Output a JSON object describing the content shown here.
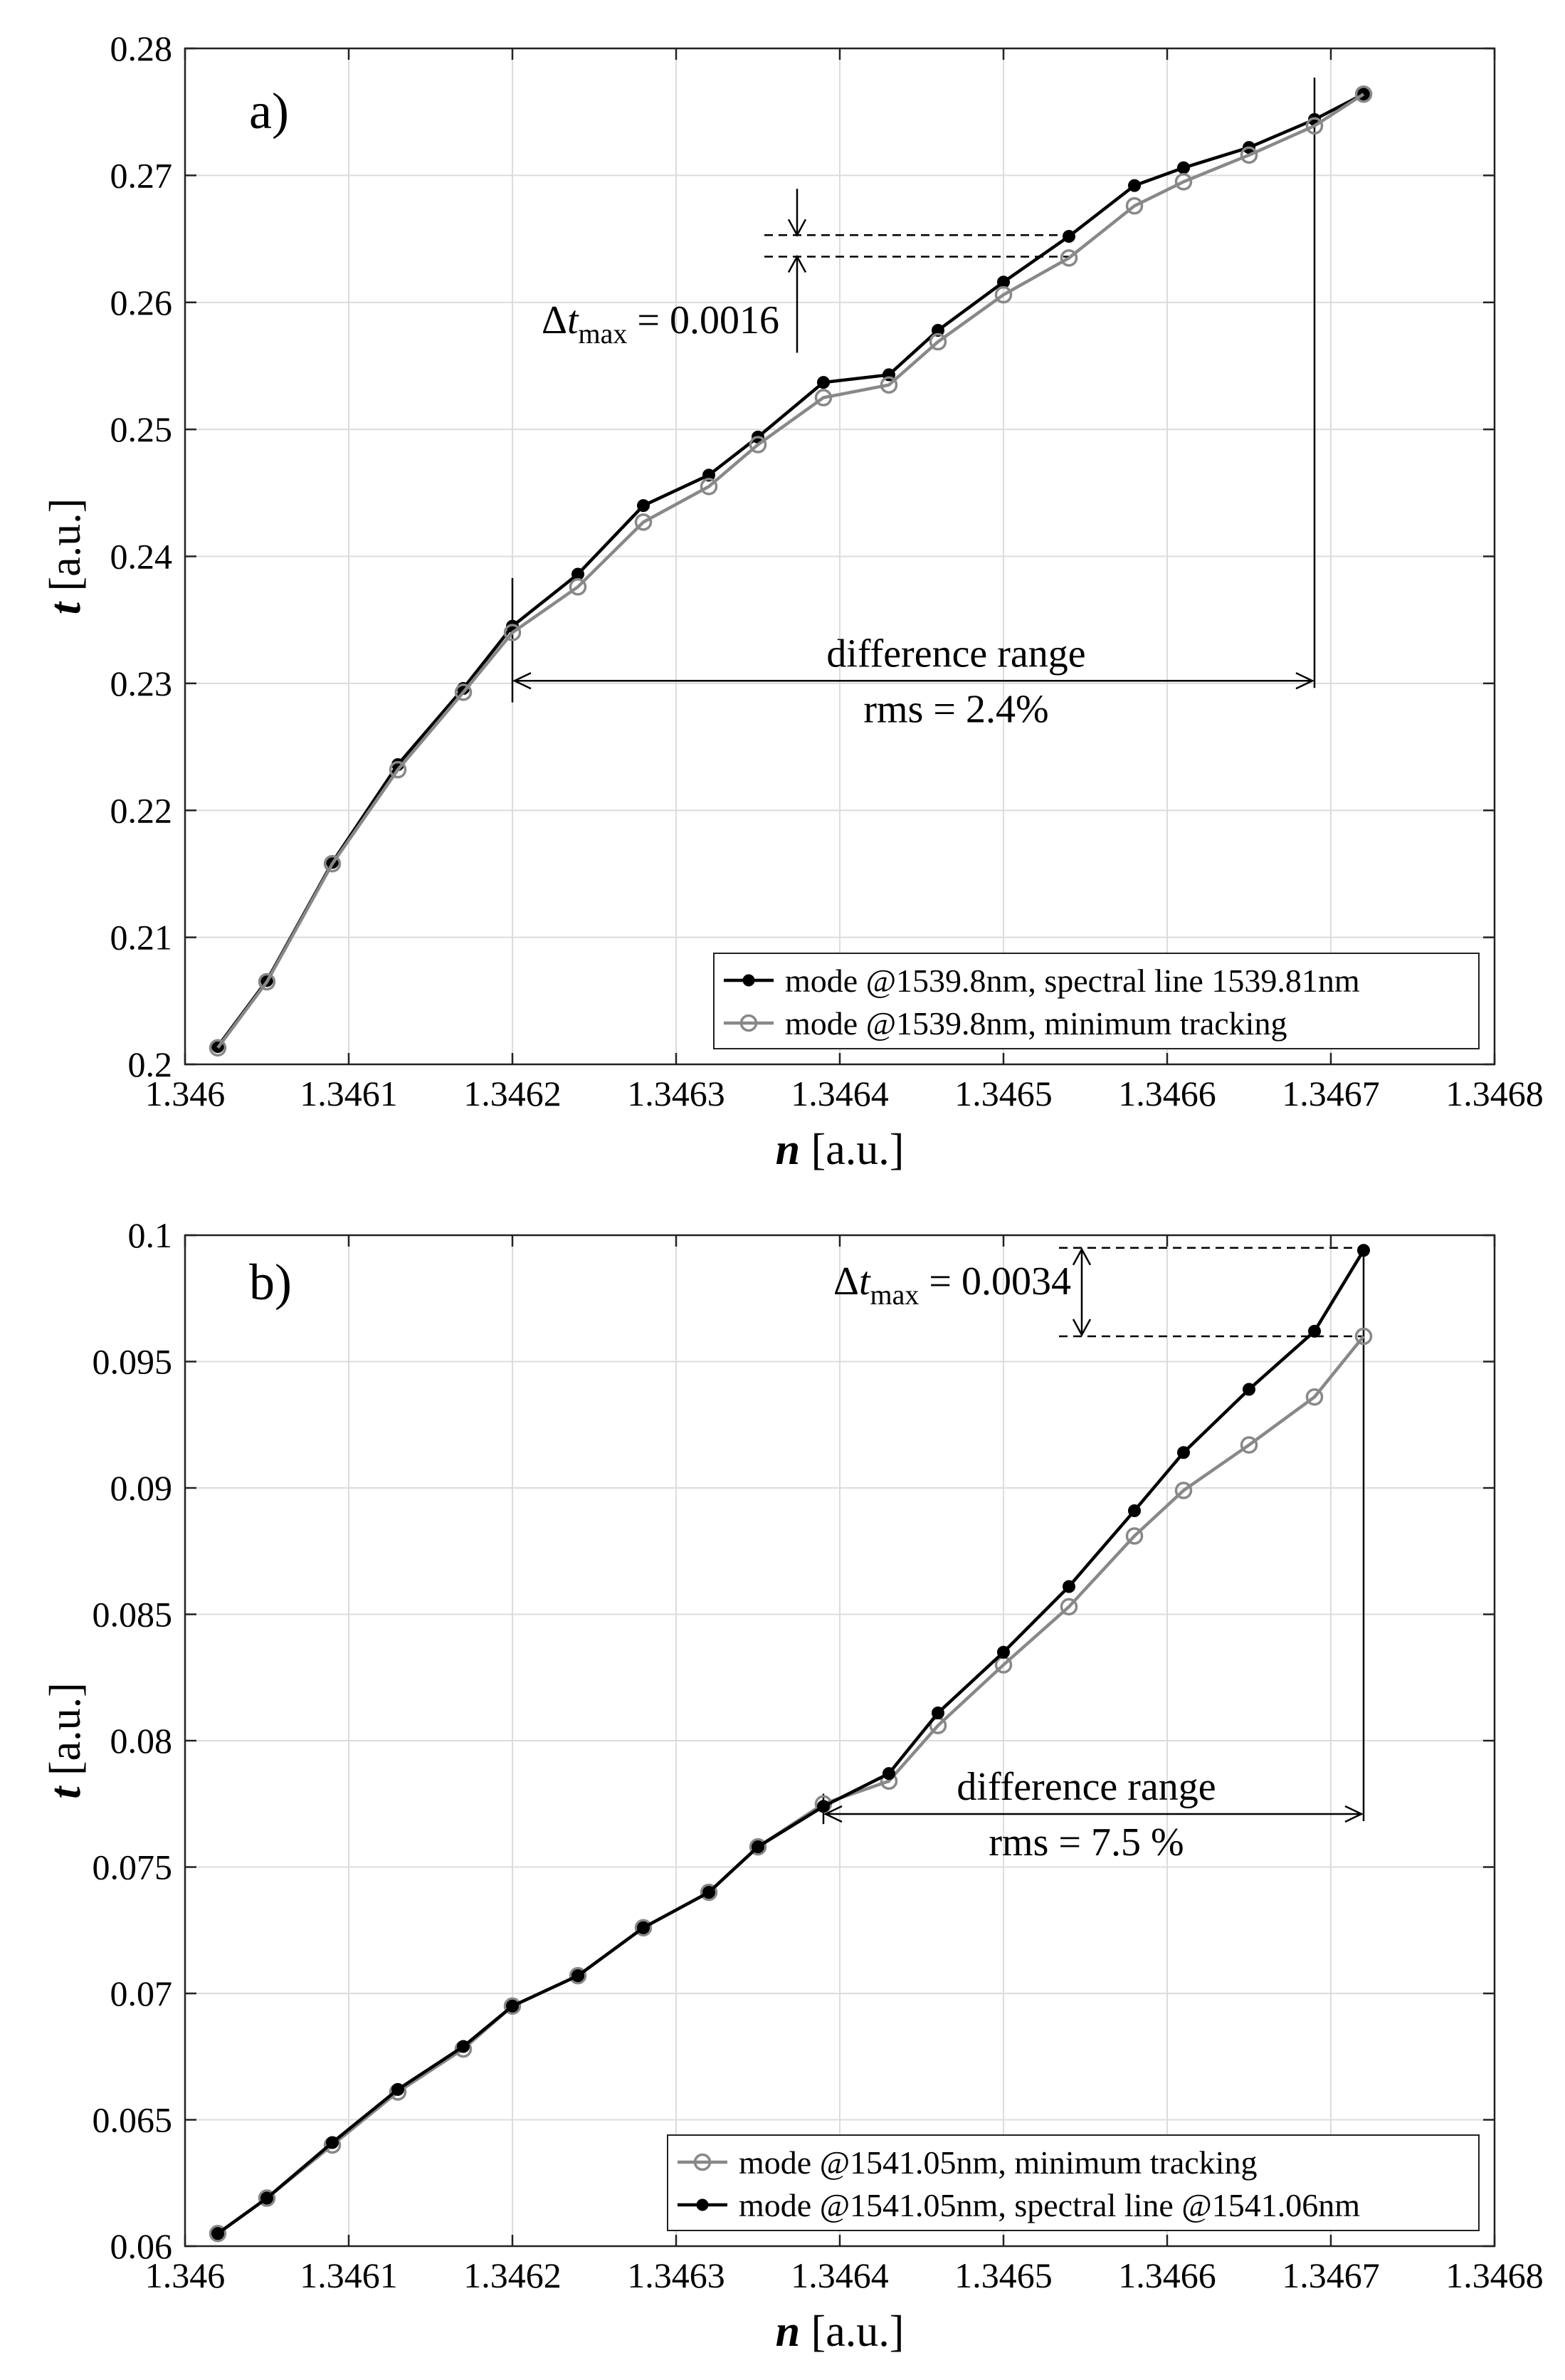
{
  "chart_data": [
    {
      "type": "line",
      "panel_label": "a)",
      "xlabel_var": "n",
      "xlabel_unit": " [a.u.]",
      "ylabel_var": "t",
      "ylabel_unit": " [a.u.]",
      "xlim": [
        1.346,
        1.3468
      ],
      "ylim": [
        0.2,
        0.28
      ],
      "x_ticks": [
        1.346,
        1.3461,
        1.3462,
        1.3463,
        1.3464,
        1.3465,
        1.3466,
        1.3467,
        1.3468
      ],
      "x_tick_labels": [
        "1.346",
        "1.3461",
        "1.3462",
        "1.3463",
        "1.3464",
        "1.3465",
        "1.3466",
        "1.3467",
        "1.3468"
      ],
      "y_ticks": [
        0.2,
        0.21,
        0.22,
        0.23,
        0.24,
        0.25,
        0.26,
        0.27,
        0.28
      ],
      "y_tick_labels": [
        "0.2",
        "0.21",
        "0.22",
        "0.23",
        "0.24",
        "0.25",
        "0.26",
        "0.27",
        "0.28"
      ],
      "grid": true,
      "legend_position": "bottom-right",
      "x": [
        1.34602,
        1.34605,
        1.34609,
        1.34613,
        1.34617,
        1.3462,
        1.34624,
        1.34628,
        1.34632,
        1.34635,
        1.34639,
        1.34643,
        1.34646,
        1.3465,
        1.34654,
        1.34658,
        1.34661,
        1.34665,
        1.34669,
        1.34672
      ],
      "series": [
        {
          "name": "mode @1539.8nm, spectral line 1539.81nm",
          "color": "#000000",
          "marker": "filled",
          "values": [
            0.2014,
            0.2066,
            0.2159,
            0.2236,
            0.2296,
            0.2345,
            0.2386,
            0.244,
            0.2464,
            0.2494,
            0.2537,
            0.2543,
            0.2578,
            0.2616,
            0.2652,
            0.2692,
            0.2706,
            0.2722,
            0.2744,
            0.2764
          ]
        },
        {
          "name": "mode @1539.8nm, minimum tracking",
          "color": "#888888",
          "marker": "open",
          "values": [
            0.2013,
            0.2065,
            0.2158,
            0.2232,
            0.2293,
            0.234,
            0.2376,
            0.2427,
            0.2455,
            0.2488,
            0.2525,
            0.2535,
            0.2569,
            0.2606,
            0.2635,
            0.2676,
            0.2695,
            0.2716,
            0.2739,
            0.2764
          ]
        }
      ],
      "annotations": {
        "delta_prefix": "Δ",
        "delta_var": "t",
        "delta_sub": "max",
        "delta_value": " = 0.0016",
        "delta_lines_y": [
          0.2653,
          0.2636
        ],
        "range_label": "difference range",
        "rms_label": "rms = 2.4%",
        "range_x": [
          1.3462,
          1.34669
        ],
        "range_arrow_y": 0.2302
      }
    },
    {
      "type": "line",
      "panel_label": "b)",
      "xlabel_var": "n",
      "xlabel_unit": " [a.u.]",
      "ylabel_var": "t",
      "ylabel_unit": " [a.u.]",
      "xlim": [
        1.346,
        1.3468
      ],
      "ylim": [
        0.06,
        0.1
      ],
      "x_ticks": [
        1.346,
        1.3461,
        1.3462,
        1.3463,
        1.3464,
        1.3465,
        1.3466,
        1.3467,
        1.3468
      ],
      "x_tick_labels": [
        "1.346",
        "1.3461",
        "1.3462",
        "1.3463",
        "1.3464",
        "1.3465",
        "1.3466",
        "1.3467",
        "1.3468"
      ],
      "y_ticks": [
        0.06,
        0.065,
        0.07,
        0.075,
        0.08,
        0.085,
        0.09,
        0.095,
        0.1
      ],
      "y_tick_labels": [
        "0.06",
        "0.065",
        "0.07",
        "0.075",
        "0.08",
        "0.085",
        "0.09",
        "0.095",
        "0.1"
      ],
      "grid": true,
      "legend_position": "bottom-right",
      "x": [
        1.34602,
        1.34605,
        1.34609,
        1.34613,
        1.34617,
        1.3462,
        1.34624,
        1.34628,
        1.34632,
        1.34635,
        1.34639,
        1.34643,
        1.34646,
        1.3465,
        1.34654,
        1.34658,
        1.34661,
        1.34665,
        1.34669,
        1.34672
      ],
      "series": [
        {
          "name": "mode @1541.05nm, minimum tracking",
          "color": "#888888",
          "marker": "open",
          "values": [
            0.0605,
            0.0619,
            0.064,
            0.0661,
            0.0678,
            0.0695,
            0.0707,
            0.0726,
            0.074,
            0.0758,
            0.0775,
            0.0784,
            0.0806,
            0.083,
            0.0853,
            0.0881,
            0.0899,
            0.0917,
            0.0936,
            0.096
          ]
        },
        {
          "name": "mode @1541.05nm, spectral line @1541.06nm",
          "color": "#000000",
          "marker": "filled",
          "values": [
            0.0605,
            0.0619,
            0.0641,
            0.0662,
            0.0679,
            0.0695,
            0.0707,
            0.0726,
            0.074,
            0.0758,
            0.0774,
            0.0787,
            0.0811,
            0.0835,
            0.0861,
            0.0891,
            0.0914,
            0.0939,
            0.0962,
            0.0994
          ]
        }
      ],
      "annotations": {
        "delta_prefix": "Δ",
        "delta_var": "t",
        "delta_sub": "max",
        "delta_value": " = 0.0034",
        "delta_lines_y": [
          0.0995,
          0.096
        ],
        "range_label": "difference range",
        "rms_label": "rms = 7.5 %",
        "range_x": [
          1.34639,
          1.34672
        ],
        "range_arrow_y": 0.0771
      }
    }
  ]
}
